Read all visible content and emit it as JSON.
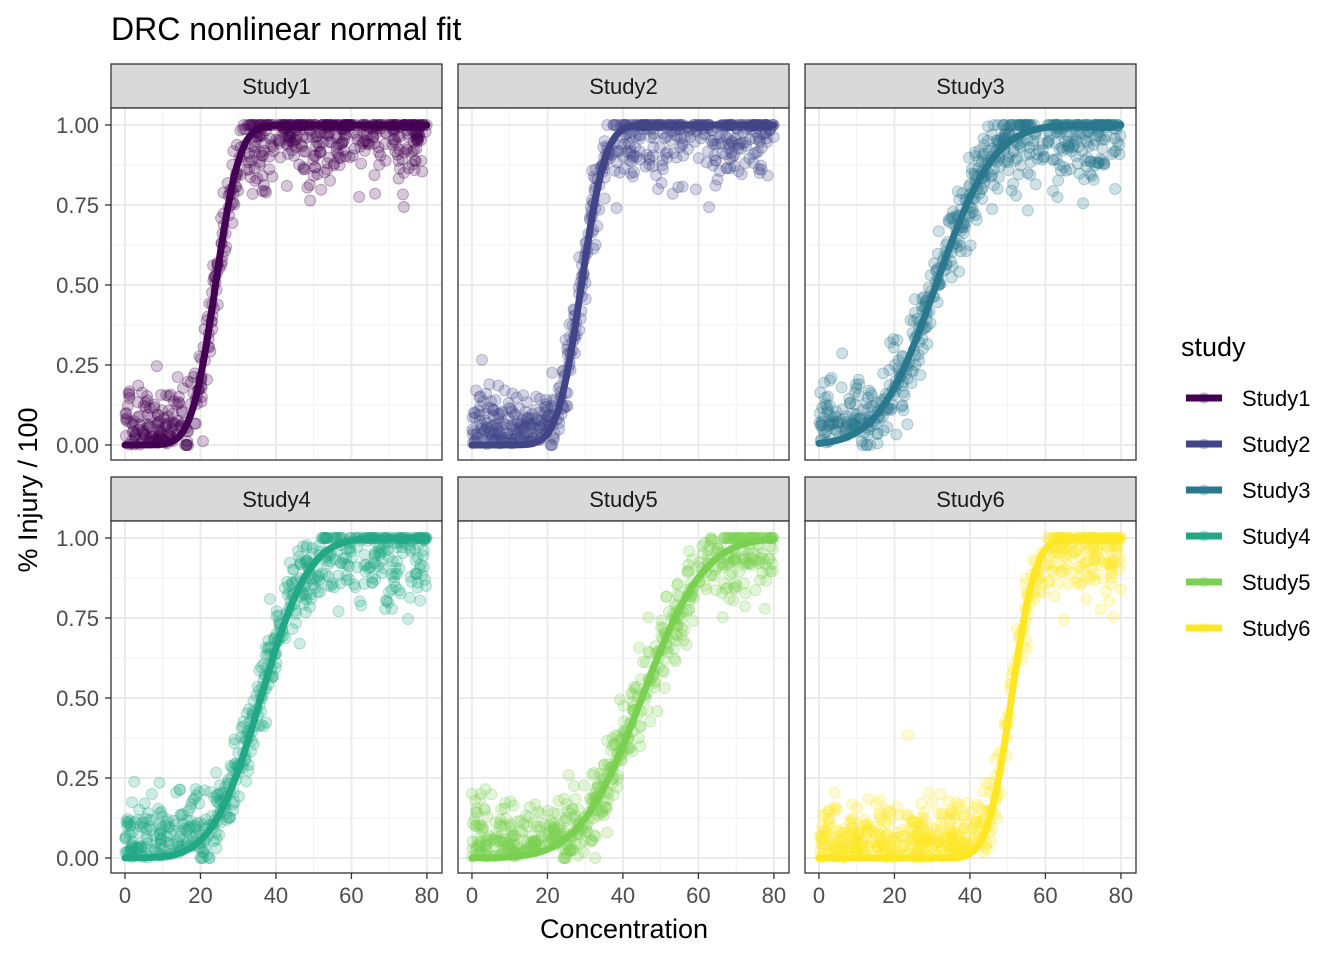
{
  "chart_data": {
    "type": "scatter",
    "title": "DRC nonlinear normal fit",
    "xlabel": "Concentration",
    "ylabel": "% Injury / 100",
    "xlim": [
      -3.7,
      84
    ],
    "ylim": [
      -0.047,
      1.053
    ],
    "x_ticks": [
      "0",
      "20",
      "40",
      "60",
      "80"
    ],
    "y_ticks": [
      "0.00",
      "0.25",
      "0.50",
      "0.75",
      "1.00"
    ],
    "grid": true,
    "legend": {
      "title": "study",
      "placement": "right"
    },
    "facets": [
      {
        "name": "Study1",
        "color": "#440154",
        "fit": {
          "model": "normal cdf",
          "mean": 24,
          "sd": 5
        }
      },
      {
        "name": "Study2",
        "color": "#414487",
        "fit": {
          "model": "normal cdf",
          "mean": 29,
          "sd": 5
        }
      },
      {
        "name": "Study3",
        "color": "#2A788E",
        "fit": {
          "model": "normal cdf",
          "mean": 31,
          "sd": 12
        }
      },
      {
        "name": "Study4",
        "color": "#22A884",
        "fit": {
          "model": "normal cdf",
          "mean": 36,
          "sd": 10
        }
      },
      {
        "name": "Study5",
        "color": "#7AD151",
        "fit": {
          "model": "normal cdf",
          "mean": 45,
          "sd": 13
        }
      },
      {
        "name": "Study6",
        "color": "#FDE725",
        "fit": {
          "model": "normal cdf",
          "mean": 51,
          "sd": 5
        }
      }
    ]
  }
}
